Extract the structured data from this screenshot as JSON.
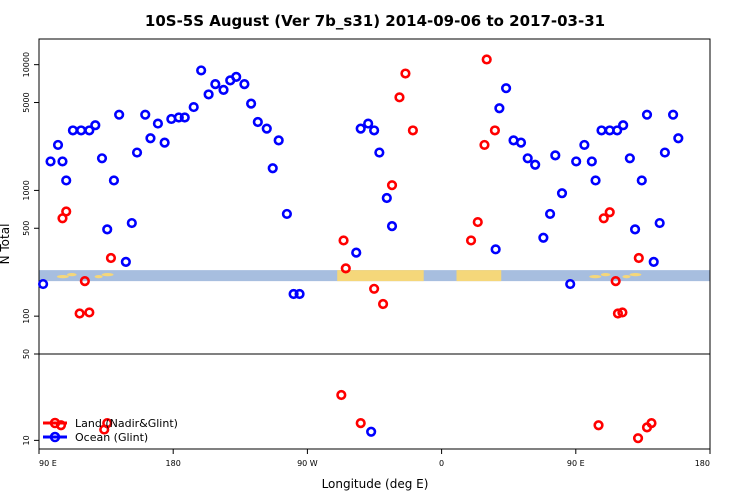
{
  "chart_data": {
    "type": "scatter",
    "title": "10S-5S August (Ver 7b_s31)   2014-09-06 to 2017-03-31",
    "xlabel": "Longitude (deg E)",
    "ylabel": "N Total",
    "x_ticks": [
      {
        "value": 90,
        "label": "90 E"
      },
      {
        "value": 180,
        "label": "180"
      },
      {
        "value": 270,
        "label": "90 W"
      },
      {
        "value": 360,
        "label": "0"
      },
      {
        "value": 450,
        "label": "90 E"
      },
      {
        "value": 540,
        "label": "180"
      }
    ],
    "xlim": [
      90,
      540
    ],
    "upper_panel": {
      "scale": "log",
      "ylim": [
        50,
        16000
      ],
      "y_ticks": [
        {
          "value": 100,
          "label": "100"
        },
        {
          "value": 500,
          "label": "500"
        },
        {
          "value": 1000,
          "label": "1000"
        },
        {
          "value": 5000,
          "label": "5000"
        },
        {
          "value": 10000,
          "label": "10000"
        }
      ],
      "separator_label": "50"
    },
    "lower_panel": {
      "scale": "linear",
      "ylim": [
        6,
        50
      ],
      "y_ticks": [
        {
          "value": 10,
          "label": "10"
        }
      ]
    },
    "map_strip": {
      "center_value": 210,
      "ocean_color": "#a7bedf",
      "land_color": "#f5d77a"
    },
    "series": [
      {
        "name": "Land (Nadir&Glint)",
        "color": "#ff0000",
        "points": [
          [
            105.75,
            600
          ],
          [
            108.25,
            680
          ],
          [
            117.25,
            105
          ],
          [
            120.75,
            190
          ],
          [
            123.75,
            107
          ],
          [
            138.25,
            290
          ],
          [
            340.75,
            3000
          ],
          [
            335.75,
            8500
          ],
          [
            331.75,
            5500
          ],
          [
            326.75,
            1100
          ],
          [
            320.75,
            125
          ],
          [
            314.75,
            165
          ],
          [
            295.75,
            240
          ],
          [
            294.25,
            400
          ],
          [
            379.75,
            400
          ],
          [
            384.25,
            560
          ],
          [
            388.75,
            2300
          ],
          [
            390.25,
            11000
          ],
          [
            395.75,
            3000
          ],
          [
            468.75,
            600
          ],
          [
            472.75,
            670
          ],
          [
            476.75,
            190
          ],
          [
            478.25,
            105
          ],
          [
            481.25,
            107
          ],
          [
            492.25,
            290
          ]
        ],
        "lower_points": [
          [
            104.75,
            17
          ],
          [
            133.75,
            15
          ],
          [
            135.75,
            18
          ],
          [
            305.75,
            18
          ],
          [
            292.75,
            31
          ],
          [
            465.25,
            17
          ],
          [
            491.75,
            11
          ],
          [
            497.75,
            16
          ],
          [
            500.75,
            18
          ]
        ]
      },
      {
        "name": "Ocean (Glint)",
        "color": "#0000ff",
        "points": [
          [
            92.75,
            180
          ],
          [
            97.75,
            1700
          ],
          [
            102.75,
            2300
          ],
          [
            105.75,
            1700
          ],
          [
            108.25,
            1200
          ],
          [
            112.75,
            3000
          ],
          [
            118.25,
            3000
          ],
          [
            123.75,
            3000
          ],
          [
            127.75,
            3300
          ],
          [
            132.25,
            1800
          ],
          [
            135.75,
            490
          ],
          [
            140.25,
            1200
          ],
          [
            143.75,
            4000
          ],
          [
            148.25,
            270
          ],
          [
            152.25,
            550
          ],
          [
            155.75,
            2000
          ],
          [
            161.25,
            4000
          ],
          [
            164.75,
            2600
          ],
          [
            169.75,
            3400
          ],
          [
            174.25,
            2400
          ],
          [
            178.75,
            3700
          ],
          [
            183.75,
            3800
          ],
          [
            187.75,
            3800
          ],
          [
            193.75,
            4600
          ],
          [
            198.75,
            9000
          ],
          [
            203.75,
            5800
          ],
          [
            208.25,
            7000
          ],
          [
            213.75,
            6300
          ],
          [
            218.25,
            7500
          ],
          [
            222.25,
            8000
          ],
          [
            227.75,
            7000
          ],
          [
            232.25,
            4900
          ],
          [
            236.75,
            3500
          ],
          [
            242.75,
            3100
          ],
          [
            246.75,
            1500
          ],
          [
            250.75,
            2500
          ],
          [
            256.25,
            650
          ],
          [
            260.75,
            150
          ],
          [
            264.75,
            150
          ],
          [
            302.75,
            320
          ],
          [
            305.75,
            3100
          ],
          [
            310.75,
            3400
          ],
          [
            314.75,
            3000
          ],
          [
            318.25,
            2000
          ],
          [
            323.25,
            870
          ],
          [
            326.75,
            520
          ],
          [
            396.25,
            340
          ],
          [
            398.75,
            4500
          ],
          [
            403.25,
            6500
          ],
          [
            408.25,
            2500
          ],
          [
            413.25,
            2400
          ],
          [
            417.75,
            1800
          ],
          [
            422.75,
            1600
          ],
          [
            428.25,
            420
          ],
          [
            432.75,
            650
          ],
          [
            436.25,
            1900
          ],
          [
            440.75,
            950
          ],
          [
            446.25,
            180
          ],
          [
            450.25,
            1700
          ],
          [
            455.75,
            2300
          ],
          [
            460.75,
            1700
          ],
          [
            463.25,
            1200
          ],
          [
            467.25,
            3000
          ],
          [
            472.75,
            3000
          ],
          [
            477.75,
            3000
          ],
          [
            481.75,
            3300
          ],
          [
            486.25,
            1800
          ],
          [
            489.75,
            490
          ],
          [
            494.25,
            1200
          ],
          [
            497.75,
            4000
          ],
          [
            502.25,
            270
          ],
          [
            506.25,
            550
          ],
          [
            509.75,
            2000
          ],
          [
            515.25,
            4000
          ],
          [
            518.75,
            2600
          ]
        ],
        "lower_points": [
          [
            312.75,
            14
          ]
        ]
      }
    ],
    "legend": {
      "position": "bottom-left"
    }
  }
}
